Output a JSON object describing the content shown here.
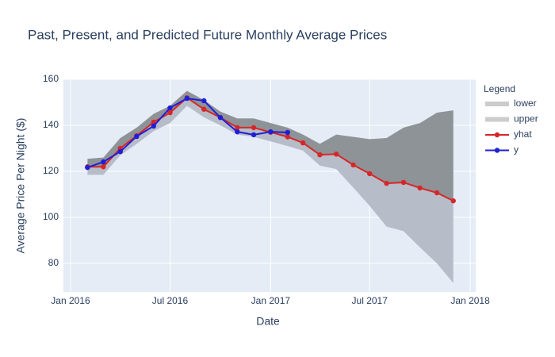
{
  "chart_data": {
    "type": "line",
    "title": "Past, Present, and Predicted Future Monthly Average Prices",
    "x_label": "Date",
    "y_label": "Average Price Per Night ($)",
    "legend_title": "Legend",
    "x": [
      "2016-02",
      "2016-03",
      "2016-04",
      "2016-05",
      "2016-06",
      "2016-07",
      "2016-08",
      "2016-09",
      "2016-10",
      "2016-11",
      "2016-12",
      "2017-01",
      "2017-02",
      "2017-03",
      "2017-04",
      "2017-05",
      "2017-06",
      "2017-07",
      "2017-08",
      "2017-09",
      "2017-10",
      "2017-11",
      "2017-12"
    ],
    "series": [
      {
        "name": "lower",
        "color": "#cccccc",
        "fill": "#b6bdc8",
        "values": [
          118.5,
          118.5,
          127,
          132,
          137.5,
          141,
          148.5,
          143.5,
          140,
          136,
          135,
          133,
          131,
          129,
          122.5,
          121,
          113,
          105,
          96,
          94,
          87,
          80,
          71.5
        ]
      },
      {
        "name": "upper",
        "color": "#cccccc",
        "fill": "#8e9398",
        "values": [
          125.5,
          126,
          134.5,
          139,
          145,
          148.5,
          155,
          151,
          146,
          143,
          143,
          141,
          139,
          136,
          132,
          136,
          135,
          134,
          134.5,
          139,
          141,
          145.5,
          146.5
        ]
      },
      {
        "name": "yhat",
        "color": "#d62728",
        "values": [
          122,
          122,
          130,
          135.5,
          141.4,
          145.5,
          152,
          147,
          143.4,
          139,
          139,
          137,
          135,
          132.4,
          127.2,
          127.5,
          122.8,
          119,
          114.8,
          115.2,
          112.8,
          110.7,
          107.2
        ]
      },
      {
        "name": "y",
        "color": "#1f1fd6",
        "values": [
          121.7,
          124.1,
          128.6,
          135.2,
          139.7,
          147.6,
          151.7,
          150.7,
          143.4,
          137.2,
          135.9,
          137.2,
          136.9,
          null,
          null,
          null,
          null,
          null,
          null,
          null,
          null,
          null,
          null
        ]
      }
    ],
    "xlim": [
      "2015-12-19",
      "2018-01-11"
    ],
    "xticks": [
      {
        "value": "2016-01",
        "label": "Jan 2016"
      },
      {
        "value": "2016-07",
        "label": "Jul 2016"
      },
      {
        "value": "2017-01",
        "label": "Jan 2017"
      },
      {
        "value": "2017-07",
        "label": "Jul 2017"
      },
      {
        "value": "2018-01",
        "label": "Jan 2018"
      }
    ],
    "ylim": [
      67.6,
      160
    ],
    "yticks": [
      80,
      100,
      120,
      140,
      160
    ],
    "grid": true,
    "legend": "right"
  }
}
